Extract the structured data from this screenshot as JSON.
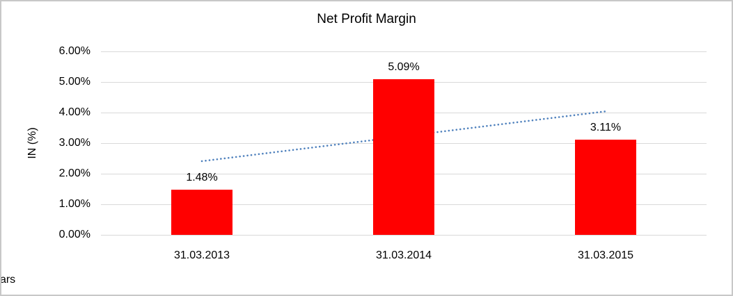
{
  "frame": {
    "background": "#FFFFFF",
    "border_color": "#C8C8C8"
  },
  "chart_data": {
    "type": "bar",
    "title": "Net Profit Margin",
    "xlabel": "Years",
    "ylabel": "IN (%)",
    "categories": [
      "31.03.2013",
      "31.03.2014",
      "31.03.2015"
    ],
    "values": [
      1.48,
      5.09,
      3.11
    ],
    "data_labels": [
      "1.48%",
      "5.09%",
      "3.11%"
    ],
    "ylim": [
      0,
      6
    ],
    "ytick_step": 1,
    "ytick_labels": [
      "0.00%",
      "1.00%",
      "2.00%",
      "3.00%",
      "4.00%",
      "5.00%",
      "6.00%"
    ],
    "grid": true,
    "legend": "none",
    "bar_color": "#FF0000",
    "gridline_color": "#D9D9D9",
    "text_color": "#000000",
    "trendline": {
      "type": "linear",
      "style": "dotted",
      "color": "#4F81BD",
      "start_value": 2.41,
      "end_value": 4.04
    }
  }
}
